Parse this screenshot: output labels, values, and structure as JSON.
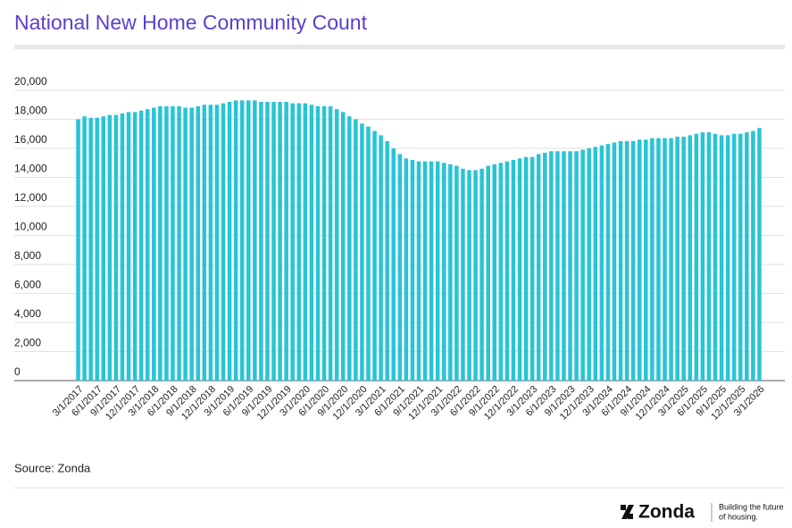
{
  "chart_data": {
    "type": "bar",
    "title": "National New Home Community Count",
    "categories": [
      "3/1/2017",
      null,
      null,
      "6/1/2017",
      null,
      null,
      "9/1/2017",
      null,
      null,
      "12/1/2017",
      null,
      null,
      "3/1/2018",
      null,
      null,
      "6/1/2018",
      null,
      null,
      "9/1/2018",
      null,
      null,
      "12/1/2018",
      null,
      null,
      "3/1/2019",
      null,
      null,
      "6/1/2019",
      null,
      null,
      "9/1/2019",
      null,
      null,
      "12/1/2019",
      null,
      null,
      "3/1/2020",
      null,
      null,
      "6/1/2020",
      null,
      null,
      "9/1/2020",
      null,
      null,
      "12/1/2020",
      null,
      null,
      "3/1/2021",
      null,
      null,
      "6/1/2021",
      null,
      null,
      "9/1/2021",
      null,
      null,
      "12/1/2021",
      null,
      null,
      "3/1/2022",
      null,
      null,
      "6/1/2022",
      null,
      null,
      "9/1/2022",
      null,
      null,
      "12/1/2022",
      null,
      null,
      "3/1/2023",
      null,
      null,
      "6/1/2023",
      null,
      null,
      "9/1/2023",
      null,
      null,
      "12/1/2023",
      null,
      null,
      "3/1/2024",
      null,
      null,
      "6/1/2024",
      null,
      null,
      "9/1/2024",
      null,
      null,
      "12/1/2024",
      null,
      null,
      "3/1/2025",
      null,
      null,
      "6/1/2025",
      null,
      null,
      "9/1/2025",
      null,
      null,
      "12/1/2025",
      null,
      null,
      "3/1/2026"
    ],
    "values": [
      18000,
      18200,
      18100,
      18100,
      18200,
      18300,
      18300,
      18400,
      18500,
      18500,
      18600,
      18700,
      18800,
      18900,
      18900,
      18900,
      18900,
      18800,
      18800,
      18900,
      19000,
      19000,
      19000,
      19100,
      19200,
      19300,
      19300,
      19300,
      19300,
      19200,
      19200,
      19200,
      19200,
      19200,
      19100,
      19100,
      19100,
      19000,
      18900,
      18900,
      18900,
      18700,
      18500,
      18200,
      18000,
      17700,
      17500,
      17200,
      16900,
      16500,
      16000,
      15600,
      15300,
      15200,
      15100,
      15100,
      15100,
      15100,
      15000,
      14900,
      14800,
      14600,
      14500,
      14500,
      14600,
      14800,
      14900,
      15000,
      15100,
      15200,
      15300,
      15400,
      15400,
      15600,
      15700,
      15800,
      15800,
      15800,
      15800,
      15800,
      15900,
      16000,
      16100,
      16200,
      16300,
      16400,
      16500,
      16500,
      16500,
      16600,
      16600,
      16700,
      16700,
      16700,
      16700,
      16800,
      16800,
      16900,
      17000,
      17100,
      17100,
      17000,
      16900,
      16900,
      17000,
      17000,
      17100,
      17200,
      17400
    ],
    "color": "#29c4d5",
    "ylim": [
      0,
      20000
    ],
    "yticks": [
      0,
      {
        "value": 2000,
        "label": "2,000"
      },
      {
        "value": 4000,
        "label": "4,000"
      },
      {
        "value": 6000,
        "label": "6,000"
      },
      {
        "value": 8000,
        "label": "8,000"
      },
      {
        "value": 10000,
        "label": "10,000"
      },
      {
        "value": 12000,
        "label": "12,000"
      },
      {
        "value": 14000,
        "label": "14,000"
      },
      {
        "value": 16000,
        "label": "16,000"
      },
      {
        "value": 18000,
        "label": "18,000"
      },
      {
        "value": 20000,
        "label": "20,000"
      }
    ],
    "grid": true,
    "source": "Source: Zonda",
    "brand": "Zonda",
    "tagline": [
      "Building the future",
      "of housing."
    ]
  }
}
